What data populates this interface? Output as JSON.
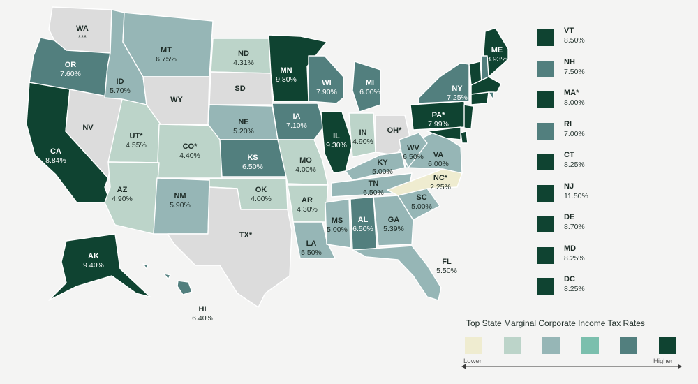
{
  "colors": {
    "lower": "#efecd0",
    "light": "#bcd4c9",
    "mid": "#96b6b6",
    "teal": "#7bbfad",
    "dark": "#527f7e",
    "darkest": "#0f4331",
    "none": "#dcdcdc"
  },
  "states": [
    {
      "code": "WA",
      "rate": "***",
      "color": "none",
      "text": "dark"
    },
    {
      "code": "OR",
      "rate": "7.60%",
      "color": "dark",
      "text": "light"
    },
    {
      "code": "CA",
      "rate": "8.84%",
      "color": "darkest",
      "text": "light"
    },
    {
      "code": "NV",
      "rate": "",
      "color": "none",
      "text": "dark"
    },
    {
      "code": "ID",
      "rate": "5.70%",
      "color": "mid",
      "text": "dark"
    },
    {
      "code": "MT",
      "rate": "6.75%",
      "color": "mid",
      "text": "dark"
    },
    {
      "code": "WY",
      "rate": "",
      "color": "none",
      "text": "dark"
    },
    {
      "code": "UT*",
      "rate": "4.55%",
      "color": "light",
      "text": "dark"
    },
    {
      "code": "CO*",
      "rate": "4.40%",
      "color": "light",
      "text": "dark"
    },
    {
      "code": "AZ",
      "rate": "4.90%",
      "color": "light",
      "text": "dark"
    },
    {
      "code": "NM",
      "rate": "5.90%",
      "color": "mid",
      "text": "dark"
    },
    {
      "code": "ND",
      "rate": "4.31%",
      "color": "light",
      "text": "dark"
    },
    {
      "code": "SD",
      "rate": "",
      "color": "none",
      "text": "dark"
    },
    {
      "code": "NE",
      "rate": "5.20%",
      "color": "mid",
      "text": "dark"
    },
    {
      "code": "KS",
      "rate": "6.50%",
      "color": "dark",
      "text": "light"
    },
    {
      "code": "OK",
      "rate": "4.00%",
      "color": "light",
      "text": "dark"
    },
    {
      "code": "TX*",
      "rate": "",
      "color": "none",
      "text": "dark"
    },
    {
      "code": "MN",
      "rate": "9.80%",
      "color": "darkest",
      "text": "light"
    },
    {
      "code": "IA",
      "rate": "7.10%",
      "color": "dark",
      "text": "light"
    },
    {
      "code": "MO",
      "rate": "4.00%",
      "color": "light",
      "text": "dark"
    },
    {
      "code": "AR",
      "rate": "4.30%",
      "color": "light",
      "text": "dark"
    },
    {
      "code": "LA",
      "rate": "5.50%",
      "color": "mid",
      "text": "dark"
    },
    {
      "code": "WI",
      "rate": "7.90%",
      "color": "dark",
      "text": "light"
    },
    {
      "code": "IL",
      "rate": "9.30%",
      "color": "darkest",
      "text": "light"
    },
    {
      "code": "MI",
      "rate": "6.00%",
      "color": "dark",
      "text": "light"
    },
    {
      "code": "IN",
      "rate": "4.90%",
      "color": "light",
      "text": "dark"
    },
    {
      "code": "OH*",
      "rate": "",
      "color": "none",
      "text": "dark"
    },
    {
      "code": "KY",
      "rate": "5.00%",
      "color": "mid",
      "text": "dark"
    },
    {
      "code": "TN",
      "rate": "6.50%",
      "color": "mid",
      "text": "dark"
    },
    {
      "code": "MS",
      "rate": "5.00%",
      "color": "mid",
      "text": "dark"
    },
    {
      "code": "AL",
      "rate": "6.50%",
      "color": "dark",
      "text": "light"
    },
    {
      "code": "GA",
      "rate": "5.39%",
      "color": "mid",
      "text": "dark"
    },
    {
      "code": "FL",
      "rate": "5.50%",
      "color": "mid",
      "text": "dark"
    },
    {
      "code": "SC",
      "rate": "5.00%",
      "color": "mid",
      "text": "dark"
    },
    {
      "code": "NC*",
      "rate": "2.25%",
      "color": "lower",
      "text": "dark"
    },
    {
      "code": "VA",
      "rate": "6.00%",
      "color": "mid",
      "text": "dark"
    },
    {
      "code": "WV",
      "rate": "6.50%",
      "color": "mid",
      "text": "dark"
    },
    {
      "code": "PA*",
      "rate": "7.99%",
      "color": "darkest",
      "text": "light"
    },
    {
      "code": "NY",
      "rate": "7.25%",
      "color": "dark",
      "text": "light"
    },
    {
      "code": "ME",
      "rate": "8.93%",
      "color": "darkest",
      "text": "light"
    },
    {
      "code": "AK",
      "rate": "9.40%",
      "color": "darkest",
      "text": "light"
    },
    {
      "code": "HI",
      "rate": "6.40%",
      "color": "dark",
      "text": "dark"
    }
  ],
  "small_states": [
    {
      "code": "VT",
      "rate": "8.50%",
      "color": "darkest"
    },
    {
      "code": "NH",
      "rate": "7.50%",
      "color": "dark"
    },
    {
      "code": "MA*",
      "rate": "8.00%",
      "color": "darkest"
    },
    {
      "code": "RI",
      "rate": "7.00%",
      "color": "dark"
    },
    {
      "code": "CT",
      "rate": "8.25%",
      "color": "darkest"
    },
    {
      "code": "NJ",
      "rate": "11.50%",
      "color": "darkest"
    },
    {
      "code": "DE",
      "rate": "8.70%",
      "color": "darkest"
    },
    {
      "code": "MD",
      "rate": "8.25%",
      "color": "darkest"
    },
    {
      "code": "DC",
      "rate": "8.25%",
      "color": "darkest"
    }
  ],
  "scale": {
    "title": "Top State Marginal Corporate Income Tax Rates",
    "low_label": "Lower",
    "high_label": "Higher",
    "colors": [
      "lower",
      "light",
      "mid",
      "teal",
      "dark",
      "darkest"
    ]
  }
}
